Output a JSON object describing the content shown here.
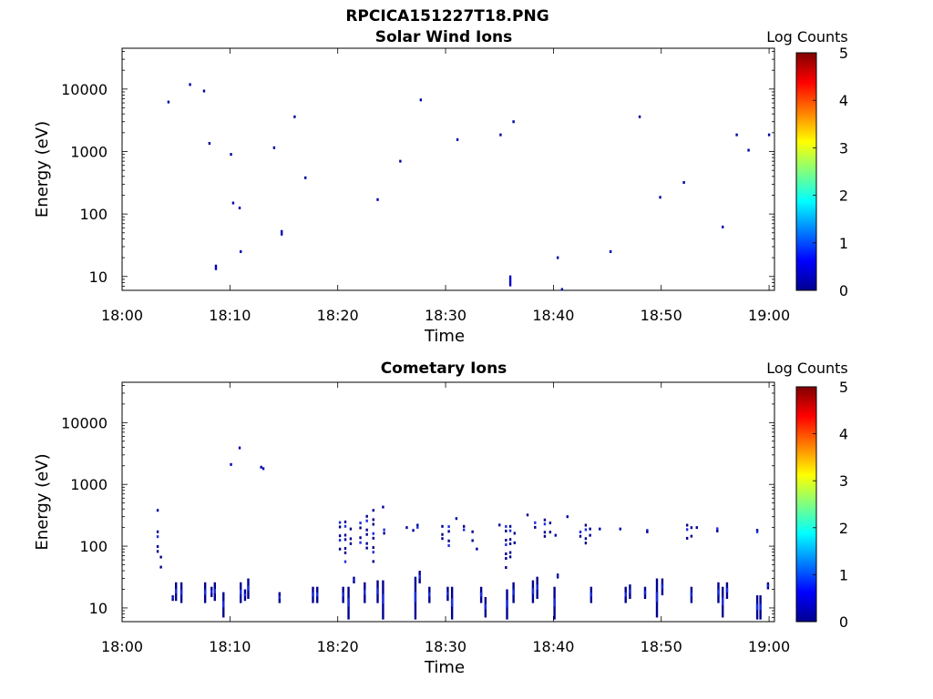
{
  "figure": {
    "title": "RPCICA151227T18.PNG"
  },
  "chart_data": [
    {
      "type": "heatmap",
      "title": "Solar Wind Ions",
      "xlabel": "Time",
      "ylabel": "Energy (eV)",
      "x_tick_labels": [
        "18:00",
        "18:10",
        "18:20",
        "18:30",
        "18:40",
        "18:50",
        "19:00"
      ],
      "x_ticks_min": [
        0,
        10,
        20,
        30,
        40,
        50,
        60
      ],
      "xlim_min": [
        0,
        60.5
      ],
      "y_scale": "log",
      "y_tick_labels": [
        "10",
        "100",
        "1000",
        "10000"
      ],
      "y_ticks": [
        10,
        100,
        1000,
        10000
      ],
      "ylim": [
        6,
        45000
      ],
      "colorbar": {
        "label": "Log Counts",
        "range": [
          0,
          5
        ],
        "ticks": [
          "0",
          "1",
          "2",
          "3",
          "4",
          "5"
        ]
      },
      "grid": false,
      "colors": {
        "low": "#00008f",
        "mid_low": "#1c2fe0",
        "bar_tip": "#6fa8ff"
      },
      "points": [
        {
          "t": 4.2,
          "e": 6200,
          "v": 0.1
        },
        {
          "t": 6.2,
          "e": 11800,
          "v": 0.1
        },
        {
          "t": 7.5,
          "e": 9300,
          "v": 0.1
        },
        {
          "t": 8.0,
          "e": 1350,
          "v": 0.1
        },
        {
          "t": 10.0,
          "e": 900,
          "v": 0.1
        },
        {
          "t": 10.2,
          "e": 150,
          "v": 0.1
        },
        {
          "t": 10.8,
          "e": 125,
          "v": 0.1
        },
        {
          "t": 8.6,
          "e": 14,
          "v": 0.2,
          "h": 2
        },
        {
          "t": 10.9,
          "e": 25,
          "v": 0.2
        },
        {
          "t": 14.0,
          "e": 1150,
          "v": 0.1
        },
        {
          "t": 14.7,
          "e": 50,
          "v": 0.2,
          "h": 2
        },
        {
          "t": 15.9,
          "e": 3600,
          "v": 0.1
        },
        {
          "t": 16.9,
          "e": 380,
          "v": 0.1
        },
        {
          "t": 23.6,
          "e": 170,
          "v": 0.2
        },
        {
          "t": 25.7,
          "e": 700,
          "v": 0.1
        },
        {
          "t": 27.6,
          "e": 6700,
          "v": 0.1
        },
        {
          "t": 31.0,
          "e": 1550,
          "v": 0.2
        },
        {
          "t": 35.0,
          "e": 1850,
          "v": 0.1
        },
        {
          "t": 35.9,
          "e": 8.5,
          "v": 0.3,
          "h": 4
        },
        {
          "t": 36.2,
          "e": 3000,
          "v": 0.1
        },
        {
          "t": 40.3,
          "e": 20,
          "v": 0.2
        },
        {
          "t": 40.7,
          "e": 6.2,
          "v": 0.1
        },
        {
          "t": 45.2,
          "e": 25,
          "v": 0.2
        },
        {
          "t": 47.9,
          "e": 3600,
          "v": 0.1
        },
        {
          "t": 49.8,
          "e": 185,
          "v": 0.1
        },
        {
          "t": 52.0,
          "e": 320,
          "v": 0.1
        },
        {
          "t": 55.6,
          "e": 62,
          "v": 0.2
        },
        {
          "t": 56.9,
          "e": 1850,
          "v": 0.1
        },
        {
          "t": 58.0,
          "e": 1050,
          "v": 0.1
        },
        {
          "t": 59.9,
          "e": 1850,
          "v": 0.1
        }
      ]
    },
    {
      "type": "heatmap",
      "title": "Cometary Ions",
      "xlabel": "Time",
      "ylabel": "Energy (eV)",
      "x_tick_labels": [
        "18:00",
        "18:10",
        "18:20",
        "18:30",
        "18:40",
        "18:50",
        "19:00"
      ],
      "x_ticks_min": [
        0,
        10,
        20,
        30,
        40,
        50,
        60
      ],
      "xlim_min": [
        0,
        60.5
      ],
      "y_scale": "log",
      "y_tick_labels": [
        "10",
        "100",
        "1000",
        "10000"
      ],
      "y_ticks": [
        10,
        100,
        1000,
        10000
      ],
      "ylim": [
        6,
        45000
      ],
      "colorbar": {
        "label": "Log Counts",
        "range": [
          0,
          5
        ],
        "ticks": [
          "0",
          "1",
          "2",
          "3",
          "4",
          "5"
        ]
      },
      "grid": false,
      "low_energy_bars": [
        {
          "t": 4.6,
          "lo": 13,
          "hi": 16
        },
        {
          "t": 4.9,
          "lo": 13,
          "hi": 26
        },
        {
          "t": 5.4,
          "lo": 12,
          "hi": 26
        },
        {
          "t": 7.6,
          "lo": 12,
          "hi": 26
        },
        {
          "t": 8.2,
          "lo": 15,
          "hi": 22
        },
        {
          "t": 8.5,
          "lo": 13,
          "hi": 26
        },
        {
          "t": 9.3,
          "lo": 7,
          "hi": 18
        },
        {
          "t": 10.9,
          "lo": 12,
          "hi": 26
        },
        {
          "t": 11.3,
          "lo": 13,
          "hi": 20
        },
        {
          "t": 11.6,
          "lo": 14,
          "hi": 30
        },
        {
          "t": 14.5,
          "lo": 12,
          "hi": 18
        },
        {
          "t": 17.6,
          "lo": 12,
          "hi": 22
        },
        {
          "t": 18.0,
          "lo": 12,
          "hi": 22
        },
        {
          "t": 20.4,
          "lo": 12,
          "hi": 22
        },
        {
          "t": 20.9,
          "lo": 6.5,
          "hi": 22
        },
        {
          "t": 21.4,
          "lo": 25,
          "hi": 32
        },
        {
          "t": 22.4,
          "lo": 12,
          "hi": 26
        },
        {
          "t": 23.6,
          "lo": 12,
          "hi": 28
        },
        {
          "t": 24.1,
          "lo": 6.5,
          "hi": 28
        },
        {
          "t": 27.1,
          "lo": 6.5,
          "hi": 32
        },
        {
          "t": 27.5,
          "lo": 25,
          "hi": 40
        },
        {
          "t": 28.4,
          "lo": 12,
          "hi": 22
        },
        {
          "t": 30.1,
          "lo": 13,
          "hi": 22
        },
        {
          "t": 30.5,
          "lo": 6.5,
          "hi": 22
        },
        {
          "t": 33.2,
          "lo": 12,
          "hi": 22
        },
        {
          "t": 33.6,
          "lo": 7,
          "hi": 15
        },
        {
          "t": 35.6,
          "lo": 6.5,
          "hi": 20
        },
        {
          "t": 36.2,
          "lo": 12,
          "hi": 26
        },
        {
          "t": 38.0,
          "lo": 12,
          "hi": 28
        },
        {
          "t": 38.4,
          "lo": 14,
          "hi": 32
        },
        {
          "t": 40.0,
          "lo": 6.5,
          "hi": 22
        },
        {
          "t": 40.3,
          "lo": 30,
          "hi": 36
        },
        {
          "t": 43.4,
          "lo": 12,
          "hi": 22
        },
        {
          "t": 46.6,
          "lo": 12,
          "hi": 22
        },
        {
          "t": 47.0,
          "lo": 14,
          "hi": 24
        },
        {
          "t": 48.4,
          "lo": 14,
          "hi": 22
        },
        {
          "t": 49.5,
          "lo": 7,
          "hi": 30
        },
        {
          "t": 50.0,
          "lo": 16,
          "hi": 30
        },
        {
          "t": 52.7,
          "lo": 12,
          "hi": 22
        },
        {
          "t": 55.2,
          "lo": 12,
          "hi": 26
        },
        {
          "t": 55.6,
          "lo": 7,
          "hi": 22
        },
        {
          "t": 56.0,
          "lo": 14,
          "hi": 26
        },
        {
          "t": 58.8,
          "lo": 6.5,
          "hi": 16
        },
        {
          "t": 59.1,
          "lo": 6.5,
          "hi": 16
        },
        {
          "t": 59.8,
          "lo": 20,
          "hi": 26
        }
      ],
      "mid_clusters": [
        {
          "t": 3.2,
          "lo": 60,
          "hi": 180
        },
        {
          "t": 3.5,
          "lo": 40,
          "hi": 70
        },
        {
          "t": 20.1,
          "lo": 80,
          "hi": 300
        },
        {
          "t": 20.6,
          "lo": 50,
          "hi": 260
        },
        {
          "t": 21.1,
          "lo": 80,
          "hi": 200
        },
        {
          "t": 22.0,
          "lo": 100,
          "hi": 300
        },
        {
          "t": 22.6,
          "lo": 70,
          "hi": 320
        },
        {
          "t": 23.2,
          "lo": 50,
          "hi": 400
        },
        {
          "t": 24.2,
          "lo": 150,
          "hi": 220
        },
        {
          "t": 27.3,
          "lo": 180,
          "hi": 230
        },
        {
          "t": 29.6,
          "lo": 120,
          "hi": 220
        },
        {
          "t": 30.2,
          "lo": 90,
          "hi": 260
        },
        {
          "t": 31.6,
          "lo": 150,
          "hi": 220
        },
        {
          "t": 32.4,
          "lo": 110,
          "hi": 180
        },
        {
          "t": 35.5,
          "lo": 40,
          "hi": 260
        },
        {
          "t": 35.9,
          "lo": 60,
          "hi": 220
        },
        {
          "t": 36.3,
          "lo": 100,
          "hi": 170
        },
        {
          "t": 38.2,
          "lo": 150,
          "hi": 300
        },
        {
          "t": 39.1,
          "lo": 130,
          "hi": 280
        },
        {
          "t": 39.6,
          "lo": 150,
          "hi": 250
        },
        {
          "t": 42.4,
          "lo": 110,
          "hi": 210
        },
        {
          "t": 42.9,
          "lo": 100,
          "hi": 230
        },
        {
          "t": 43.3,
          "lo": 140,
          "hi": 200
        },
        {
          "t": 48.6,
          "lo": 170,
          "hi": 200
        },
        {
          "t": 52.3,
          "lo": 120,
          "hi": 230
        },
        {
          "t": 52.7,
          "lo": 130,
          "hi": 210
        },
        {
          "t": 55.1,
          "lo": 170,
          "hi": 220
        },
        {
          "t": 58.8,
          "lo": 160,
          "hi": 190
        }
      ],
      "points": [
        {
          "t": 3.2,
          "e": 380,
          "v": 0.2
        },
        {
          "t": 10.0,
          "e": 2100,
          "v": 0.2
        },
        {
          "t": 10.8,
          "e": 3900,
          "v": 0.1
        },
        {
          "t": 12.8,
          "e": 1900,
          "v": 0.2
        },
        {
          "t": 13.0,
          "e": 1800,
          "v": 0.2
        },
        {
          "t": 26.3,
          "e": 200,
          "v": 0.1
        },
        {
          "t": 26.9,
          "e": 180,
          "v": 0.1
        },
        {
          "t": 32.8,
          "e": 90,
          "v": 0.1
        },
        {
          "t": 34.9,
          "e": 220,
          "v": 0.1
        },
        {
          "t": 37.5,
          "e": 320,
          "v": 0.1
        },
        {
          "t": 40.1,
          "e": 150,
          "v": 0.1
        },
        {
          "t": 41.2,
          "e": 300,
          "v": 0.1
        },
        {
          "t": 44.2,
          "e": 190,
          "v": 0.1
        },
        {
          "t": 46.1,
          "e": 190,
          "v": 0.1
        },
        {
          "t": 53.2,
          "e": 200,
          "v": 0.1
        },
        {
          "t": 24.1,
          "e": 430,
          "v": 0.1
        },
        {
          "t": 30.9,
          "e": 280,
          "v": 0.1
        }
      ]
    }
  ]
}
